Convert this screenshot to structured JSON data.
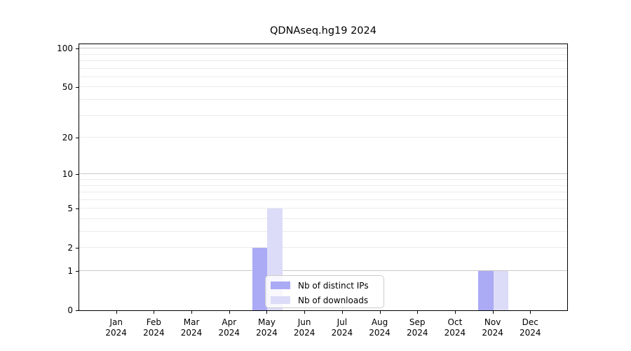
{
  "chart_data": {
    "type": "bar",
    "title": "QDNAseq.hg19 2024",
    "xlabel": "",
    "ylabel": "",
    "yscale": "log1p",
    "ylim": [
      0,
      110
    ],
    "grid": "horizontal",
    "legend_position": "inside-bottom-center",
    "categories": [
      "Jan",
      "Feb",
      "Mar",
      "Apr",
      "May",
      "Jun",
      "Jul",
      "Aug",
      "Sep",
      "Oct",
      "Nov",
      "Dec"
    ],
    "category_year": "2024",
    "y_tick_labels": [
      "100",
      "50",
      "20",
      "10",
      "5",
      "2",
      "1",
      "0"
    ],
    "y_tick_values": [
      100,
      50,
      20,
      10,
      5,
      2,
      1,
      0
    ],
    "grid_major_values": [
      1,
      10,
      100
    ],
    "grid_minor_values": [
      2,
      3,
      4,
      5,
      6,
      7,
      8,
      9,
      20,
      30,
      40,
      50,
      60,
      70,
      80,
      90
    ],
    "series": [
      {
        "name": "Nb of distinct IPs",
        "color": "#aaaaf5",
        "values": [
          0,
          0,
          0,
          0,
          2,
          0,
          0,
          0,
          0,
          0,
          1,
          0
        ]
      },
      {
        "name": "Nb of downloads",
        "color": "#dcdcf8",
        "values": [
          0,
          0,
          0,
          0,
          5,
          0,
          0,
          0,
          0,
          0,
          1,
          0
        ]
      }
    ],
    "colors": {
      "grid_major": "#c9c9c9",
      "grid_minor": "#ebebeb",
      "spine": "#000000",
      "text": "#000000",
      "legend_border": "#cccccc"
    }
  }
}
